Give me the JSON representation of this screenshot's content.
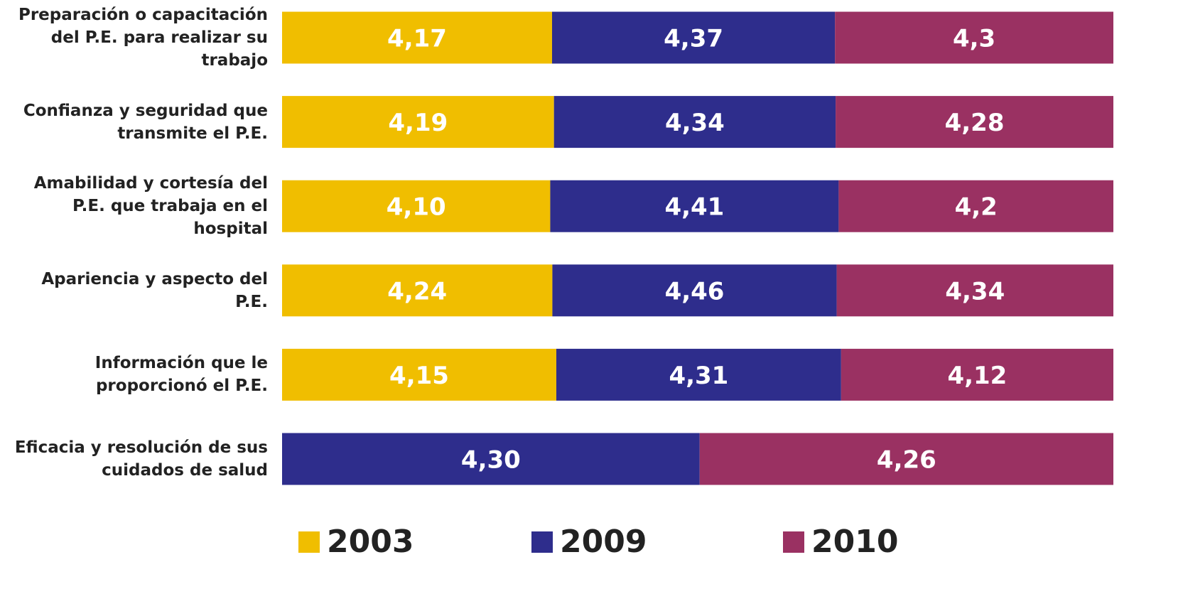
{
  "chart_data": {
    "type": "bar_stacked_percent",
    "orientation": "horizontal",
    "categories": [
      "Preparación o capacitación del P.E. para realizar su trabajo",
      "Confianza y seguridad que transmite el P.E.",
      "Amabilidad y cortesía del P.E. que trabaja en el hospital",
      "Apariencia y aspecto del P.E.",
      "Información que le proporcionó el P.E.",
      "Eficacia y resolución de sus cuidados de salud"
    ],
    "series": [
      {
        "name": "2003",
        "color": "#f0be00",
        "values": [
          4.17,
          4.19,
          4.1,
          4.24,
          4.15,
          null
        ],
        "value_labels": [
          "4,17",
          "4,19",
          "4,10",
          "4,24",
          "4,15",
          null
        ]
      },
      {
        "name": "2009",
        "color": "#2e2d8c",
        "values": [
          4.37,
          4.34,
          4.41,
          4.46,
          4.31,
          4.3
        ],
        "value_labels": [
          "4,37",
          "4,34",
          "4,41",
          "4,46",
          "4,31",
          "4,30"
        ]
      },
      {
        "name": "2010",
        "color": "#9a3162",
        "values": [
          4.3,
          4.28,
          4.2,
          4.34,
          4.12,
          4.26
        ],
        "value_labels": [
          "4,3",
          "4,28",
          "4,2",
          "4,34",
          "4,12",
          "4,26"
        ]
      }
    ],
    "legend": "bottom"
  }
}
